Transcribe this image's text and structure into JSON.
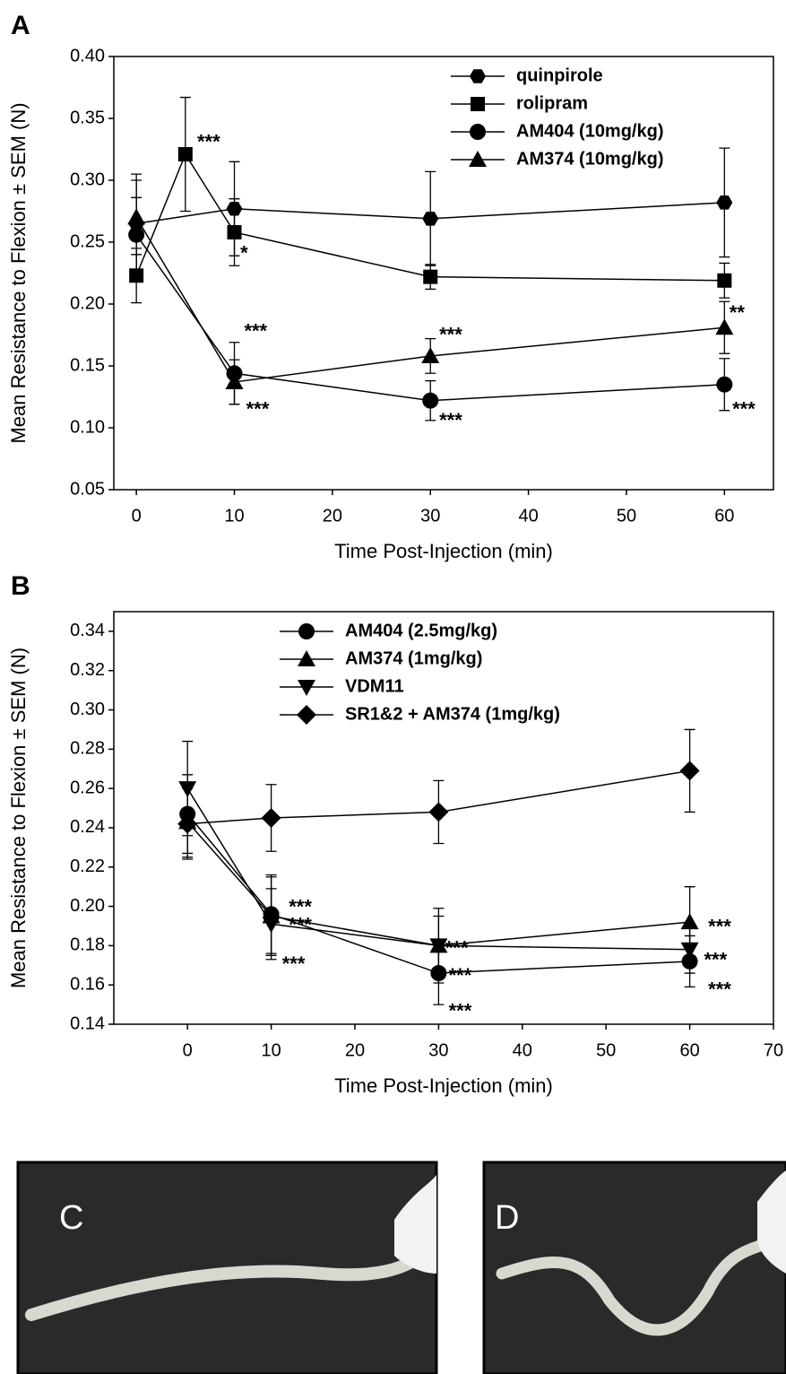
{
  "chart_data": [
    {
      "type": "line",
      "panel_label": "A",
      "y_label": "Mean Resistance to Flexion ± SEM (N)",
      "x_label": "Time Post-Injection (min)",
      "xlim": [
        -2.3,
        65
      ],
      "xticks": [
        0,
        10,
        20,
        30,
        40,
        50,
        60
      ],
      "ylim": [
        0.05,
        0.4
      ],
      "yticks": [
        0.05,
        {
          "value": 0.1,
          "label": "0.10"
        },
        0.15,
        {
          "value": 0.2,
          "label": "0.20"
        },
        0.25,
        {
          "value": 0.3,
          "label": "0.30"
        },
        0.35,
        {
          "value": 0.4,
          "label": "0.40"
        }
      ],
      "legend": "upper right",
      "series": [
        {
          "name": "quinpirole",
          "color": "#000000",
          "marker": "hexagon",
          "x": [
            0,
            10,
            30,
            60
          ],
          "values": [
            0.265,
            0.277,
            0.269,
            0.282
          ],
          "errors": [
            0.04,
            0.038,
            0.038,
            0.044
          ]
        },
        {
          "name": "rolipram",
          "color": "#000000",
          "marker": "square",
          "x": [
            0,
            5,
            10,
            30,
            60
          ],
          "values": [
            0.223,
            0.321,
            0.258,
            0.222,
            0.219
          ],
          "errors": [
            0.022,
            0.046,
            0.027,
            0.01,
            0.014
          ]
        },
        {
          "name": "AM404 (10mg/kg)",
          "color": "#000000",
          "marker": "circle",
          "x": [
            0,
            10,
            30,
            60
          ],
          "values": [
            0.256,
            0.144,
            0.122,
            0.135
          ],
          "errors": [
            0.03,
            0.025,
            0.016,
            0.021
          ]
        },
        {
          "name": "AM374 (10mg/kg)",
          "color": "#000000",
          "marker": "triangle",
          "x": [
            0,
            10,
            30,
            60
          ],
          "values": [
            0.27,
            0.137,
            0.158,
            0.181
          ],
          "errors": [
            0.03,
            0.018,
            0.014,
            0.021
          ]
        }
      ],
      "annotations": [
        {
          "text": "***",
          "x": 6.2,
          "y": 0.33
        },
        {
          "text": "*",
          "x": 10.6,
          "y": 0.24
        },
        {
          "text": "***",
          "x": 11.0,
          "y": 0.177
        },
        {
          "text": "***",
          "x": 11.2,
          "y": 0.114
        },
        {
          "text": "***",
          "x": 30.9,
          "y": 0.174
        },
        {
          "text": "***",
          "x": 30.9,
          "y": 0.105
        },
        {
          "text": "**",
          "x": 60.5,
          "y": 0.192
        },
        {
          "text": "***",
          "x": 60.8,
          "y": 0.114
        }
      ]
    },
    {
      "type": "line",
      "panel_label": "B",
      "y_label": "Mean Resistance to Flexion ± SEM (N)",
      "x_label": "Time Post-Injection (min)",
      "xlim": [
        -8.8,
        70
      ],
      "xticks": [
        0,
        10,
        20,
        30,
        40,
        50,
        60,
        70
      ],
      "ylim": [
        0.14,
        0.35
      ],
      "yticks": [
        0.14,
        0.16,
        0.18,
        {
          "value": 0.2,
          "label": "0.20"
        },
        0.22,
        0.24,
        0.26,
        0.28,
        {
          "value": 0.3,
          "label": "0.30"
        },
        0.32,
        0.34
      ],
      "legend": "upper center",
      "series": [
        {
          "name": "AM404 (2.5mg/kg)",
          "color": "#000000",
          "marker": "circle",
          "x": [
            0,
            10,
            30,
            60
          ],
          "values": [
            0.247,
            0.196,
            0.166,
            0.172
          ],
          "errors": [
            0.02,
            0.02,
            0.016,
            0.013
          ]
        },
        {
          "name": "AM374 (1mg/kg)",
          "color": "#000000",
          "marker": "triangle",
          "x": [
            0,
            10,
            30,
            60
          ],
          "values": [
            0.243,
            0.195,
            0.18,
            0.192
          ],
          "errors": [
            0.018,
            0.02,
            0.019,
            0.018
          ]
        },
        {
          "name": "VDM11",
          "color": "#000000",
          "marker": "triangle-down",
          "x": [
            0,
            10,
            30,
            60
          ],
          "values": [
            0.26,
            0.191,
            0.18,
            0.178
          ],
          "errors": [
            0.024,
            0.018,
            0.015,
            0.012
          ]
        },
        {
          "name": "SR1&2 + AM374 (1mg/kg)",
          "color": "#000000",
          "marker": "diamond",
          "x": [
            0,
            10,
            30,
            60
          ],
          "values": [
            0.242,
            0.245,
            0.248,
            0.269
          ],
          "errors": [
            0.018,
            0.017,
            0.016,
            0.021
          ]
        }
      ],
      "annotations": [
        {
          "text": "***",
          "x": 12.1,
          "y": 0.199
        },
        {
          "text": "***",
          "x": 12.1,
          "y": 0.19
        },
        {
          "text": "***",
          "x": 11.3,
          "y": 0.17
        },
        {
          "text": "***",
          "x": 30.8,
          "y": 0.178
        },
        {
          "text": "***",
          "x": 31.2,
          "y": 0.164
        },
        {
          "text": "***",
          "x": 31.2,
          "y": 0.146
        },
        {
          "text": "***",
          "x": 62.2,
          "y": 0.189
        },
        {
          "text": "***",
          "x": 61.7,
          "y": 0.172
        },
        {
          "text": "***",
          "x": 62.2,
          "y": 0.157
        }
      ]
    }
  ],
  "photos": [
    {
      "label": "C"
    },
    {
      "label": "D"
    }
  ]
}
